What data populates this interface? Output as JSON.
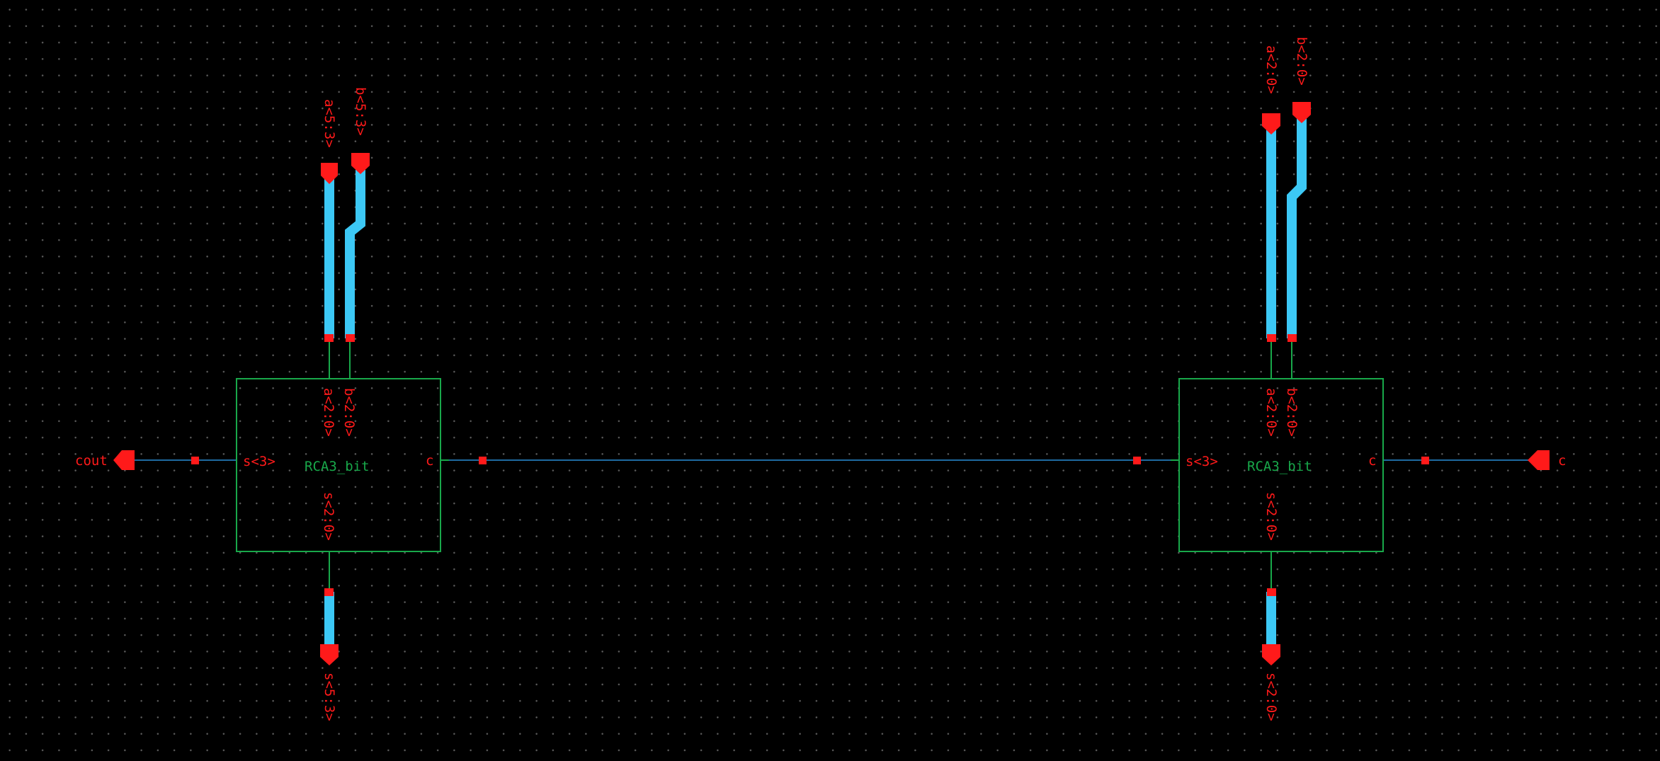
{
  "colors": {
    "background": "#000000",
    "bus": "#3cc8f5",
    "wire": "#1e6aa0",
    "instance": "#18a84a",
    "pin": "#ff1a1a"
  },
  "instances": [
    {
      "name": "RCA3_bit",
      "pin_a": "a<2:0>",
      "pin_b": "b<2:0>",
      "pin_s_bus": "s<2:0>",
      "pin_s3": "s<3>",
      "pin_c": "c"
    },
    {
      "name": "RCA3_bit",
      "pin_a": "a<2:0>",
      "pin_b": "b<2:0>",
      "pin_s_bus": "s<2:0>",
      "pin_s3": "s<3>",
      "pin_c": "c"
    }
  ],
  "pins": {
    "cout": "cout",
    "c": "c",
    "a_hi": "a<5:3>",
    "b_hi": "b<5:3>",
    "a_lo": "a<2:0>",
    "b_lo": "b<2:0>",
    "s_hi": "s<5:3>",
    "s_lo": "s<2:0>"
  }
}
